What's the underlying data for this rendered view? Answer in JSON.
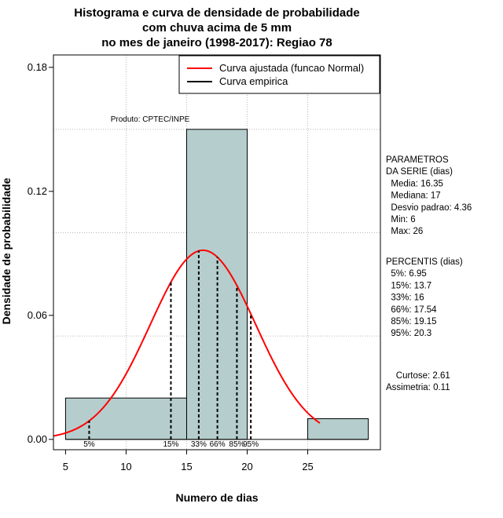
{
  "chart_data": {
    "type": "bar",
    "title_lines": [
      "Histograma e curva de densidade de probabilidade",
      "com chuva acima de 5 mm",
      "no mes de janeiro (1998-2017): Regiao 78"
    ],
    "xlabel": "Numero de dias",
    "ylabel": "Densidade de probabilidade",
    "xlim": [
      4,
      31
    ],
    "ylim": [
      -0.005,
      0.186
    ],
    "x_ticks": [
      5,
      10,
      15,
      20,
      25
    ],
    "y_ticks": [
      0.0,
      0.06,
      0.12,
      0.18
    ],
    "y_tick_labels": [
      "0.00",
      "0.06",
      "0.12",
      "0.18"
    ],
    "grid": true,
    "grid_x": [
      10,
      15,
      20,
      25
    ],
    "grid_y": [
      0.05,
      0.1,
      0.15
    ],
    "bins": [
      {
        "x0": 5,
        "x1": 15,
        "density": 0.02
      },
      {
        "x0": 15,
        "x1": 20,
        "density": 0.15
      },
      {
        "x0": 20,
        "x1": 25,
        "density": 0.0
      },
      {
        "x0": 25,
        "x1": 30,
        "density": 0.01
      }
    ],
    "bar_color": "#b5cecd",
    "normal_fit": {
      "mean": 16.35,
      "sd": 4.36,
      "x_range": [
        4,
        26
      ],
      "color": "#ff0000"
    },
    "percentiles": [
      {
        "label": "5%",
        "value": 6.95
      },
      {
        "label": "15%",
        "value": 13.7
      },
      {
        "label": "33%",
        "value": 16
      },
      {
        "label": "66%",
        "value": 17.54
      },
      {
        "label": "85%",
        "value": 19.15
      },
      {
        "label": "95%",
        "value": 20.3
      }
    ],
    "legend": {
      "position": "top-right",
      "entries": [
        {
          "label": "Curva ajustada (funcao Normal)",
          "color": "#ff0000"
        },
        {
          "label": "Curva empirica",
          "color": "#000000"
        }
      ]
    },
    "source_label": "Produto: CPTEC/INPE",
    "stats_panel": {
      "parametros_lines": [
        "PARAMETROS",
        "DA SERIE (dias)",
        "  Media: 16.35",
        "  Mediana: 17",
        "  Desvio padrao: 4.36",
        "  Min: 6",
        "  Max: 26"
      ],
      "percentis_lines": [
        "PERCENTIS (dias)",
        "  5%: 6.95",
        "  15%: 13.7",
        "  33%: 16",
        "  66%: 17.54",
        "  85%: 19.15",
        "  95%: 20.3"
      ],
      "shape_lines": [
        "    Curtose: 2.61",
        "Assimetria: 0.11"
      ]
    }
  }
}
